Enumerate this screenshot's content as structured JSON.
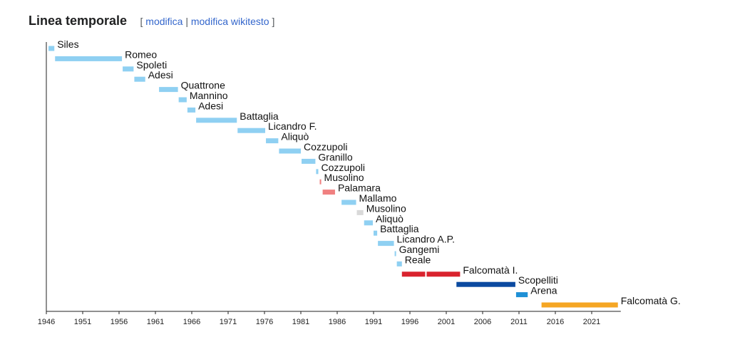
{
  "header": {
    "title": "Linea temporale",
    "bracket_open": "[",
    "edit_label": "modifica",
    "separator": "|",
    "edit_source_label": "modifica wikitesto",
    "bracket_close": "]"
  },
  "colors": {
    "light_blue": "#8fd0f2",
    "pink": "#f08080",
    "light_gray": "#d9d9d9",
    "red": "#d9232e",
    "dark_blue": "#0b4aa0",
    "blue": "#1e90d6",
    "orange": "#f5a623",
    "link": "#3366cc"
  },
  "chart_data": {
    "type": "timeline",
    "x_ticks": [
      1946,
      1951,
      1956,
      1961,
      1966,
      1971,
      1976,
      1981,
      1986,
      1991,
      1996,
      2001,
      2006,
      2011,
      2016,
      2021
    ],
    "xlim": [
      1946,
      2025
    ],
    "grid": false,
    "bars": [
      {
        "name": "Siles",
        "start": 1946.3,
        "end": 1947.1,
        "color": "light_blue"
      },
      {
        "name": "Romeo",
        "start": 1947.2,
        "end": 1956.4,
        "color": "light_blue"
      },
      {
        "name": "Spoleti",
        "start": 1956.5,
        "end": 1958.0,
        "color": "light_blue"
      },
      {
        "name": "Adesi",
        "start": 1958.1,
        "end": 1959.6,
        "color": "light_blue"
      },
      {
        "name": "Quattrone",
        "start": 1961.5,
        "end": 1964.1,
        "color": "light_blue"
      },
      {
        "name": "Mannino",
        "start": 1964.2,
        "end": 1965.3,
        "color": "light_blue"
      },
      {
        "name": "Adesi",
        "start": 1965.4,
        "end": 1966.5,
        "color": "light_blue"
      },
      {
        "name": "Battaglia",
        "start": 1966.6,
        "end": 1972.2,
        "color": "light_blue"
      },
      {
        "name": "Licandro F.",
        "start": 1972.3,
        "end": 1976.1,
        "color": "light_blue"
      },
      {
        "name": "Aliquò",
        "start": 1976.2,
        "end": 1977.9,
        "color": "light_blue"
      },
      {
        "name": "Cozzupoli",
        "start": 1978.0,
        "end": 1981.0,
        "color": "light_blue"
      },
      {
        "name": "Granillo",
        "start": 1981.1,
        "end": 1983.0,
        "color": "light_blue"
      },
      {
        "name": "Cozzupoli",
        "start": 1983.1,
        "end": 1983.4,
        "color": "light_blue"
      },
      {
        "name": "Musolino",
        "start": 1983.6,
        "end": 1983.8,
        "color": "pink"
      },
      {
        "name": "Palamara",
        "start": 1984.0,
        "end": 1985.7,
        "color": "pink"
      },
      {
        "name": "Mallamo",
        "start": 1986.6,
        "end": 1988.6,
        "color": "light_blue"
      },
      {
        "name": "Musolino",
        "start": 1988.7,
        "end": 1989.6,
        "color": "light_gray"
      },
      {
        "name": "Aliquò",
        "start": 1989.7,
        "end": 1990.9,
        "color": "light_blue"
      },
      {
        "name": "Battaglia",
        "start": 1991.0,
        "end": 1991.5,
        "color": "light_blue"
      },
      {
        "name": "Licandro A.P.",
        "start": 1991.6,
        "end": 1993.8,
        "color": "light_blue"
      },
      {
        "name": "Gangemi",
        "start": 1993.9,
        "end": 1994.1,
        "color": "light_blue"
      },
      {
        "name": "Reale",
        "start": 1994.2,
        "end": 1994.9,
        "color": "light_blue"
      },
      {
        "name": "Falcomatà I.",
        "segments": [
          [
            1994.9,
            1998.1
          ],
          [
            1998.3,
            2002.9
          ]
        ],
        "color": "red"
      },
      {
        "name": "Scopelliti",
        "start": 2002.4,
        "end": 2010.5,
        "color": "dark_blue"
      },
      {
        "name": "Arena",
        "start": 2010.6,
        "end": 2012.2,
        "color": "blue"
      },
      {
        "name": "Falcomatà G.",
        "start": 2014.1,
        "end": 2024.6,
        "color": "orange"
      }
    ]
  }
}
